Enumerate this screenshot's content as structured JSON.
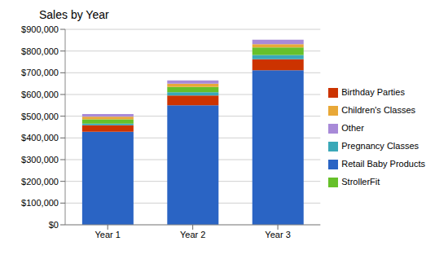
{
  "chart_data": {
    "type": "bar",
    "title": "Sales by Year",
    "categories": [
      "Year 1",
      "Year 2",
      "Year 3"
    ],
    "stacked": true,
    "grid": true,
    "legend": "right",
    "ylim": [
      0,
      900000
    ],
    "yticks": [
      {
        "value": 0,
        "label": "$0"
      },
      {
        "value": 100000,
        "label": "$100,000"
      },
      {
        "value": 200000,
        "label": "$200,000"
      },
      {
        "value": 300000,
        "label": "$300,000"
      },
      {
        "value": 400000,
        "label": "$400,000"
      },
      {
        "value": 500000,
        "label": "$500,000"
      },
      {
        "value": 600000,
        "label": "$600,000"
      },
      {
        "value": 700000,
        "label": "$700,000"
      },
      {
        "value": 800000,
        "label": "$800,000"
      },
      {
        "value": 900000,
        "label": "$900,000"
      }
    ],
    "series": [
      {
        "name": "Retail Baby Products",
        "color": "#2a64c4",
        "values": [
          428000,
          550000,
          712000
        ]
      },
      {
        "name": "Birthday Parties",
        "color": "#cc3300",
        "values": [
          30000,
          45000,
          50000
        ]
      },
      {
        "name": "Pregnancy Classes",
        "color": "#3aa8b8",
        "values": [
          8000,
          15000,
          20000
        ]
      },
      {
        "name": "StrollerFit",
        "color": "#66c02a",
        "values": [
          20000,
          25000,
          35000
        ]
      },
      {
        "name": "Children's Classes",
        "color": "#e8a838",
        "values": [
          12000,
          15000,
          15000
        ]
      },
      {
        "name": "Other",
        "color": "#a88ad8",
        "values": [
          12000,
          15000,
          20000
        ]
      }
    ]
  }
}
